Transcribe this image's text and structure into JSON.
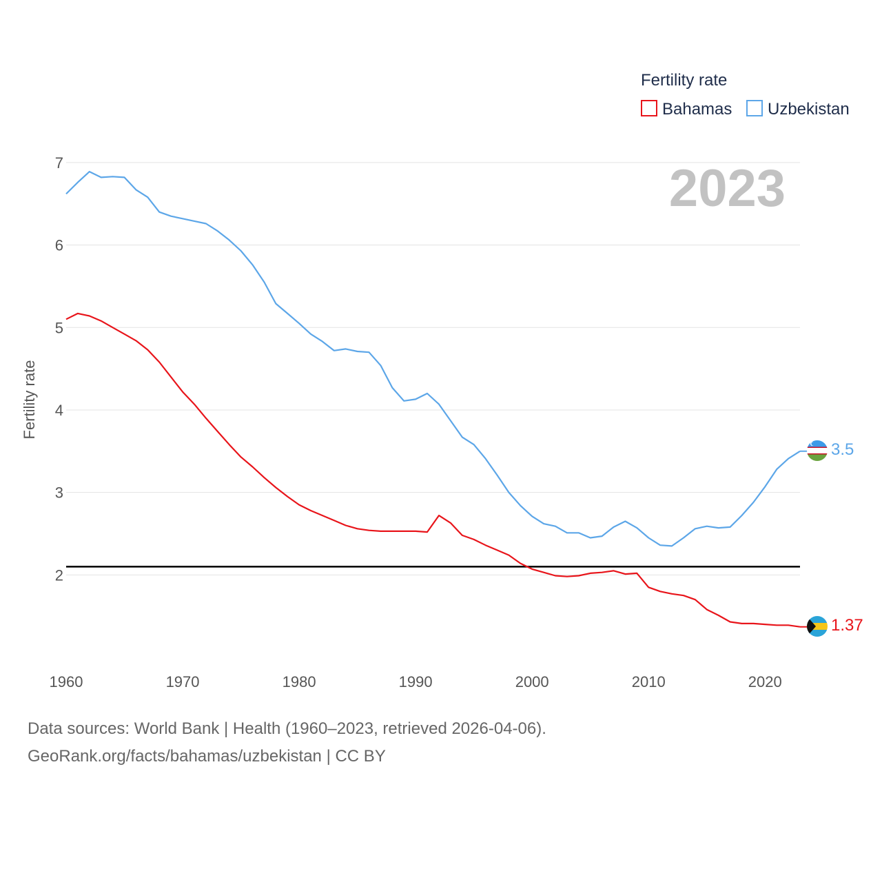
{
  "chart_data": {
    "type": "line",
    "title": "Fertility rate",
    "ylabel": "Fertility rate",
    "xlabel": "",
    "year_label": "2023",
    "xlim": [
      1960,
      2023
    ],
    "ylim": [
      1,
      7.3
    ],
    "x_ticks": [
      1960,
      1970,
      1980,
      1990,
      2000,
      2010,
      2020
    ],
    "y_ticks": [
      2,
      3,
      4,
      5,
      6,
      7
    ],
    "reference_line": {
      "value": 2.1,
      "color": "#000000"
    },
    "legend_position": "top-right",
    "years": [
      1960,
      1961,
      1962,
      1963,
      1964,
      1965,
      1966,
      1967,
      1968,
      1969,
      1970,
      1971,
      1972,
      1973,
      1974,
      1975,
      1976,
      1977,
      1978,
      1979,
      1980,
      1981,
      1982,
      1983,
      1984,
      1985,
      1986,
      1987,
      1988,
      1989,
      1990,
      1991,
      1992,
      1993,
      1994,
      1995,
      1996,
      1997,
      1998,
      1999,
      2000,
      2001,
      2002,
      2003,
      2004,
      2005,
      2006,
      2007,
      2008,
      2009,
      2010,
      2011,
      2012,
      2013,
      2014,
      2015,
      2016,
      2017,
      2018,
      2019,
      2020,
      2021,
      2022,
      2023
    ],
    "series": [
      {
        "name": "Bahamas",
        "color": "#e8141a",
        "end_label": "1.37",
        "values": [
          5.1,
          5.17,
          5.14,
          5.08,
          5.0,
          4.92,
          4.84,
          4.73,
          4.58,
          4.4,
          4.22,
          4.07,
          3.9,
          3.74,
          3.58,
          3.43,
          3.31,
          3.18,
          3.06,
          2.95,
          2.85,
          2.78,
          2.72,
          2.66,
          2.6,
          2.56,
          2.54,
          2.53,
          2.53,
          2.53,
          2.53,
          2.52,
          2.72,
          2.63,
          2.48,
          2.43,
          2.36,
          2.3,
          2.24,
          2.14,
          2.07,
          2.03,
          1.99,
          1.98,
          1.99,
          2.02,
          2.03,
          2.05,
          2.01,
          2.02,
          1.85,
          1.8,
          1.77,
          1.75,
          1.7,
          1.58,
          1.51,
          1.43,
          1.41,
          1.41,
          1.4,
          1.39,
          1.39,
          1.37
        ]
      },
      {
        "name": "Uzbekistan",
        "color": "#5ca6e8",
        "end_label": "3.5",
        "values": [
          6.62,
          6.76,
          6.89,
          6.82,
          6.83,
          6.82,
          6.67,
          6.58,
          6.4,
          6.35,
          6.32,
          6.29,
          6.26,
          6.17,
          6.06,
          5.93,
          5.76,
          5.55,
          5.29,
          5.17,
          5.05,
          4.92,
          4.83,
          4.72,
          4.74,
          4.71,
          4.7,
          4.54,
          4.27,
          4.11,
          4.13,
          4.2,
          4.07,
          3.87,
          3.67,
          3.58,
          3.41,
          3.21,
          3.0,
          2.84,
          2.71,
          2.62,
          2.59,
          2.51,
          2.51,
          2.45,
          2.47,
          2.58,
          2.65,
          2.57,
          2.45,
          2.36,
          2.35,
          2.45,
          2.56,
          2.59,
          2.57,
          2.58,
          2.72,
          2.88,
          3.07,
          3.28,
          3.41,
          3.5
        ]
      }
    ]
  },
  "footer": {
    "line1": "Data sources: World Bank | Health (1960–2023, retrieved 2026-04-06).",
    "line2": "GeoRank.org/facts/bahamas/uzbekistan | CC BY"
  }
}
